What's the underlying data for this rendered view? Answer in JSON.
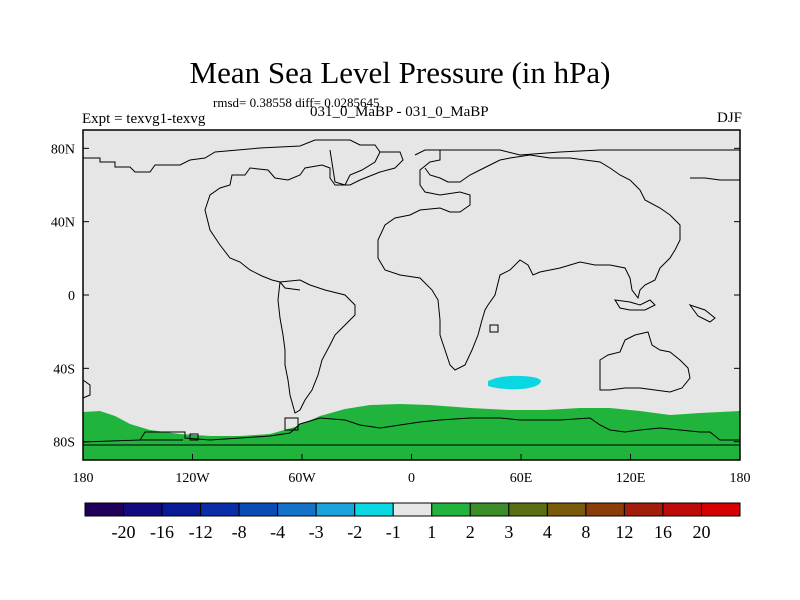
{
  "chart_data": {
    "type": "heatmap",
    "title": "Mean Sea Level Pressure (in hPa)",
    "stats_label": "rmsd= 0.38558 diff= 0.0285645",
    "left_label": "Expt = texvg1-texvg",
    "center_label": "031_0_MaBP - 031_0_MaBP",
    "right_label": "DJF",
    "x_ticks": [
      "180",
      "120W",
      "60W",
      "0",
      "60E",
      "120E",
      "180"
    ],
    "y_ticks": [
      "80N",
      "40N",
      "0",
      "40S",
      "80S"
    ],
    "xlim": [
      -180,
      180
    ],
    "ylim": [
      -90,
      90
    ],
    "background_class": "-1 to 1",
    "regions": [
      {
        "label": "2",
        "description": "positive anomaly band over Antarctica / southern ocean"
      },
      {
        "label": "-2",
        "description": "negative anomaly patch south-west Indian Ocean"
      }
    ],
    "colorbar": {
      "labels": [
        "-20",
        "-16",
        "-12",
        "-8",
        "-4",
        "-3",
        "-2",
        "-1",
        "1",
        "2",
        "3",
        "4",
        "8",
        "12",
        "16",
        "20"
      ],
      "colors": [
        "#1e005a",
        "#140a80",
        "#0a1a96",
        "#0a2da8",
        "#0a4bb4",
        "#1473c8",
        "#19a5dc",
        "#0ad7e1",
        "#e6e6e6",
        "#21b43c",
        "#3c8c28",
        "#5a6e14",
        "#785a0a",
        "#8c3c0a",
        "#a01e0a",
        "#be0a0a",
        "#d70000"
      ]
    },
    "colors": {
      "neutral": "#e6e6e6",
      "positive_2": "#21b43c",
      "negative_2": "#0ad7e1",
      "coastline": "#000000"
    }
  }
}
